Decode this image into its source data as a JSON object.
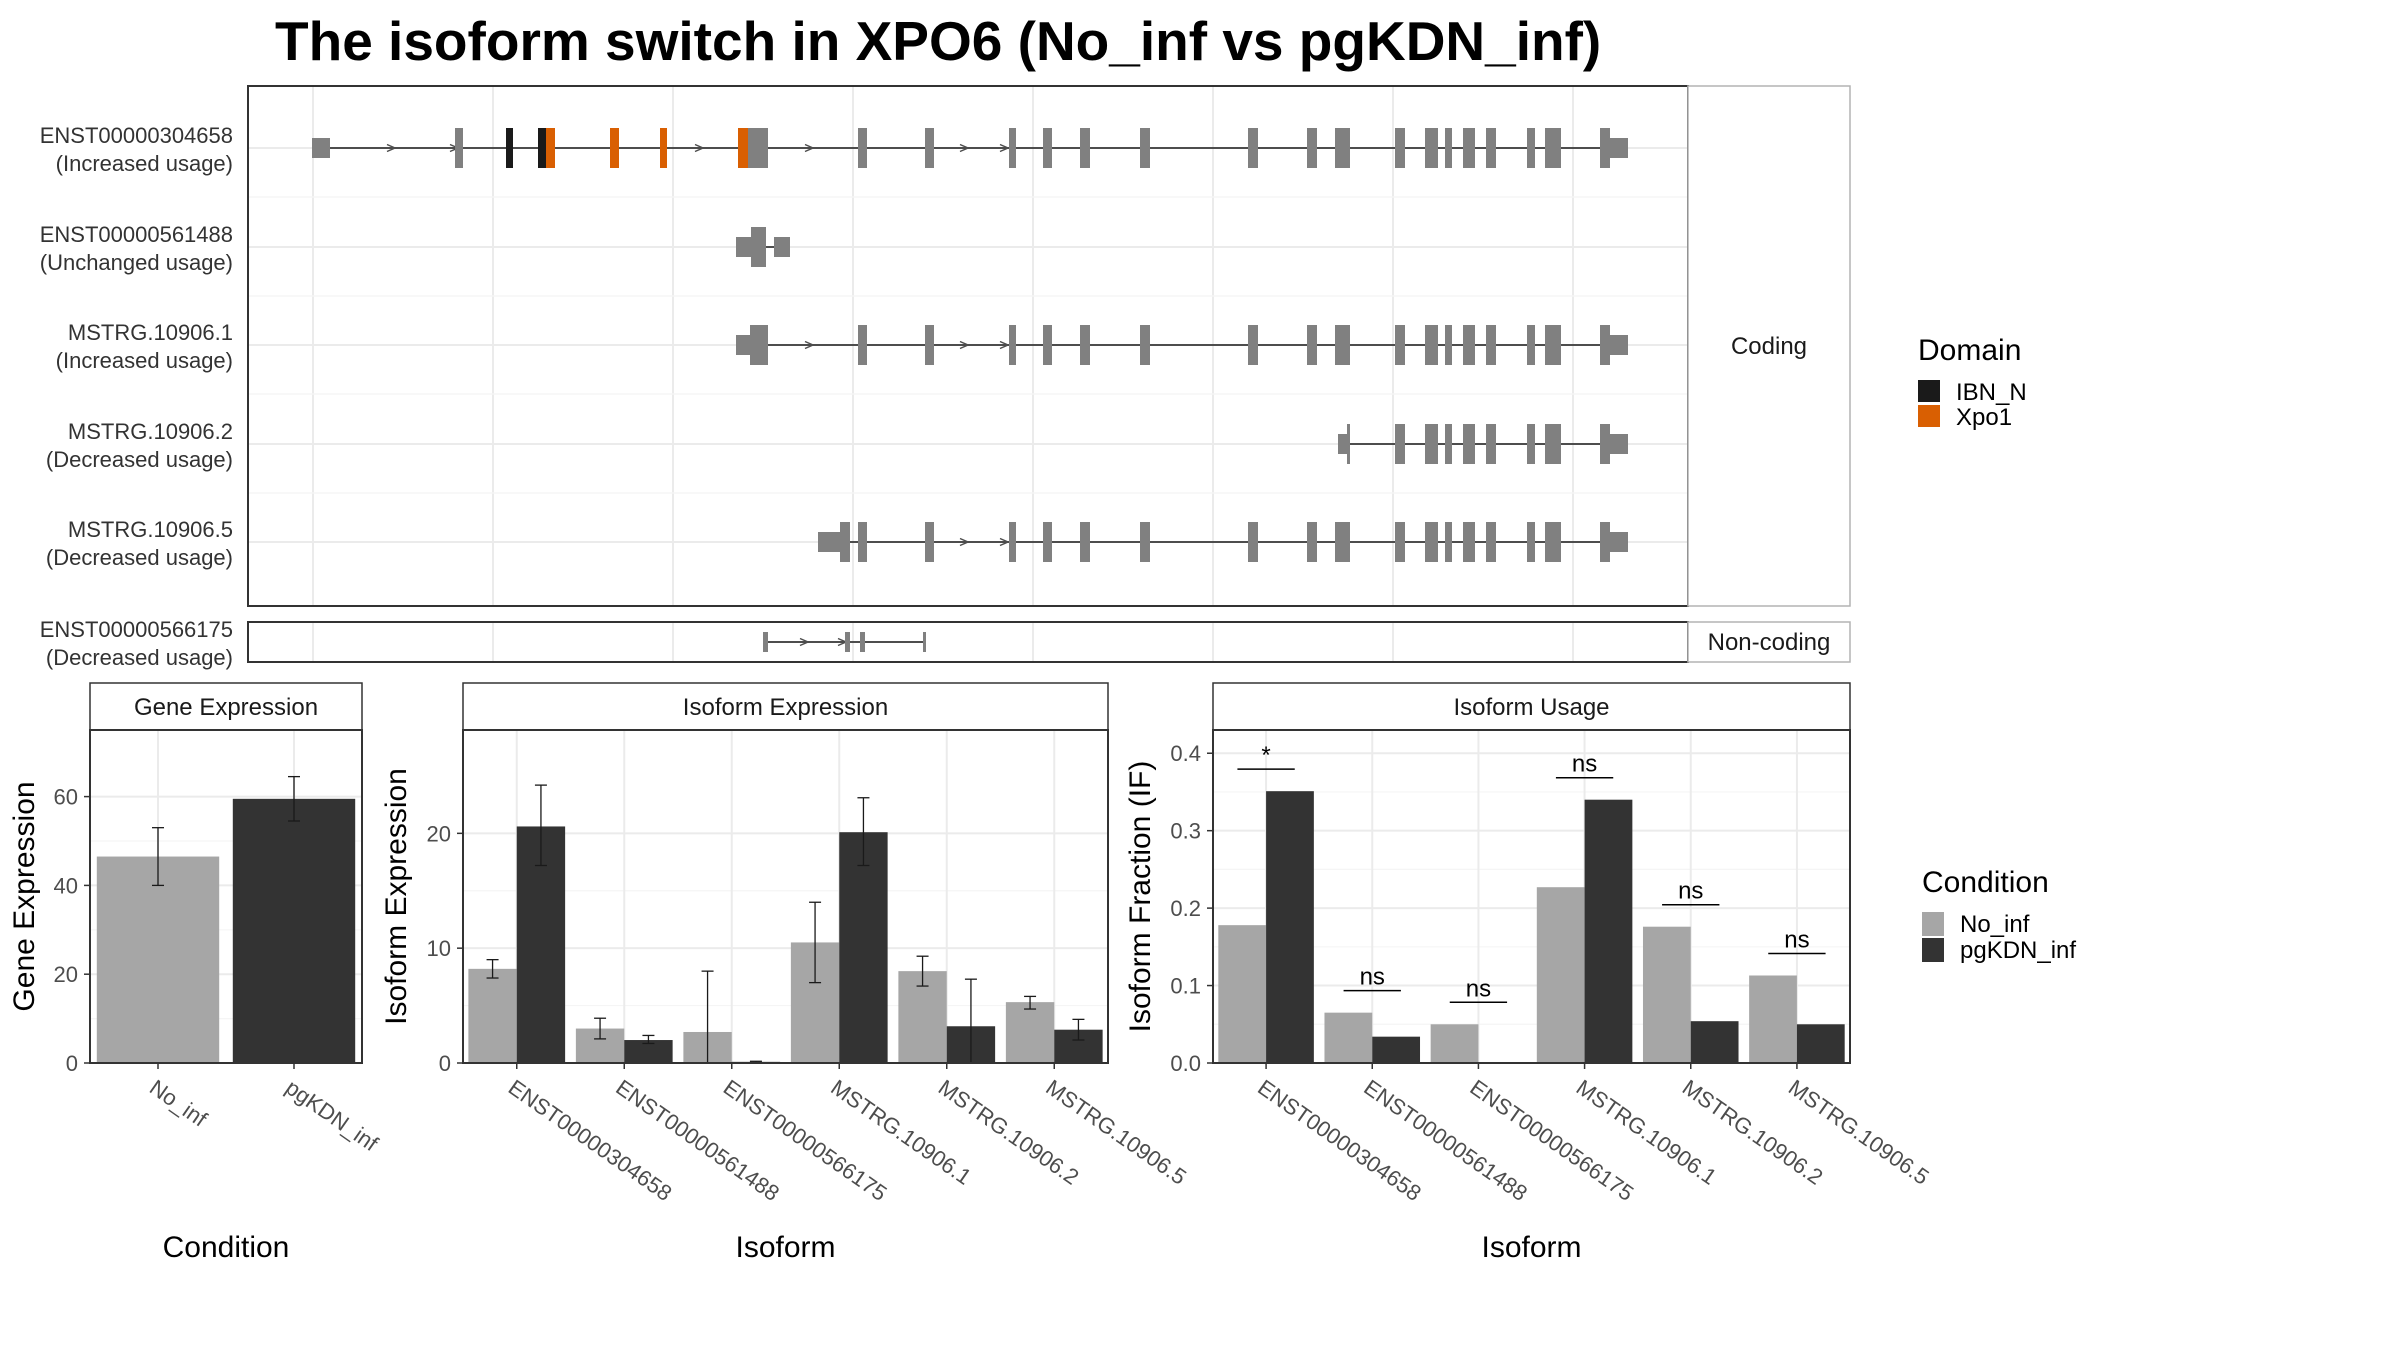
{
  "title": "The isoform switch in XPO6 (No_inf vs pgKDN_inf)",
  "structure": {
    "coding_label": "Coding",
    "noncoding_label": "Non-coding",
    "rows": [
      {
        "id": "ENST00000304658",
        "usage": "(Increased usage)"
      },
      {
        "id": "ENST00000561488",
        "usage": "(Unchanged usage)"
      },
      {
        "id": "MSTRG.10906.1",
        "usage": "(Increased usage)"
      },
      {
        "id": "MSTRG.10906.2",
        "usage": "(Decreased usage)"
      },
      {
        "id": "MSTRG.10906.5",
        "usage": "(Decreased usage)"
      },
      {
        "id": "ENST00000566175",
        "usage": "(Decreased usage)"
      }
    ]
  },
  "legends": {
    "domain": {
      "title": "Domain",
      "items": [
        {
          "label": "IBN_N",
          "color": "#1a1a1a"
        },
        {
          "label": "Xpo1",
          "color": "#d95f02"
        }
      ]
    },
    "condition": {
      "title": "Condition",
      "items": [
        {
          "label": "No_inf",
          "color": "#a6a6a6"
        },
        {
          "label": "pgKDN_inf",
          "color": "#333333"
        }
      ]
    }
  },
  "chart_data": [
    {
      "type": "bar",
      "title": "Gene Expression",
      "xlabel": "Condition",
      "ylabel": "Gene Expression",
      "ylim": [
        0,
        75
      ],
      "yticks": [
        0,
        20,
        40,
        60
      ],
      "categories": [
        "No_inf",
        "pgKDN_inf"
      ],
      "values": [
        46.5,
        59.5
      ],
      "error_low": [
        40,
        54.5
      ],
      "error_high": [
        53,
        64.5
      ]
    },
    {
      "type": "bar",
      "title": "Isoform Expression",
      "xlabel": "Isoform",
      "ylabel": "Isoform Expression",
      "ylim": [
        0,
        29
      ],
      "yticks": [
        0,
        10,
        20
      ],
      "categories": [
        "ENST00000304658",
        "ENST00000561488",
        "ENST00000566175",
        "MSTRG.10906.1",
        "MSTRG.10906.2",
        "MSTRG.10906.5"
      ],
      "series": [
        {
          "name": "No_inf",
          "values": [
            8.2,
            3.0,
            2.7,
            10.5,
            8.0,
            5.3
          ],
          "error_low": [
            7.4,
            2.1,
            0,
            7.0,
            6.7,
            4.7
          ],
          "error_high": [
            9.0,
            3.9,
            8.0,
            14.0,
            9.3,
            5.8
          ]
        },
        {
          "name": "pgKDN_inf",
          "values": [
            20.6,
            2.0,
            0.1,
            20.1,
            3.2,
            2.9
          ],
          "error_low": [
            17.2,
            1.7,
            0.05,
            17.2,
            0,
            2.0
          ],
          "error_high": [
            24.2,
            2.4,
            0.15,
            23.1,
            7.3,
            3.8
          ]
        }
      ]
    },
    {
      "type": "bar",
      "title": "Isoform Usage",
      "xlabel": "Isoform",
      "ylabel": "Isoform Fraction (IF)",
      "ylim": [
        0,
        0.43
      ],
      "yticks": [
        0.0,
        0.1,
        0.2,
        0.3,
        0.4
      ],
      "ytick_labels": [
        "0.0",
        "0.1",
        "0.2",
        "0.3",
        "0.4"
      ],
      "categories": [
        "ENST00000304658",
        "ENST00000561488",
        "ENST00000566175",
        "MSTRG.10906.1",
        "MSTRG.10906.2",
        "MSTRG.10906.5"
      ],
      "series": [
        {
          "name": "No_inf",
          "values": [
            0.178,
            0.065,
            0.05,
            0.227,
            0.176,
            0.113
          ]
        },
        {
          "name": "pgKDN_inf",
          "values": [
            0.351,
            0.034,
            0.0,
            0.34,
            0.054,
            0.05
          ]
        }
      ],
      "significance": [
        "*",
        "ns",
        "ns",
        "ns",
        "ns",
        "ns"
      ]
    }
  ]
}
